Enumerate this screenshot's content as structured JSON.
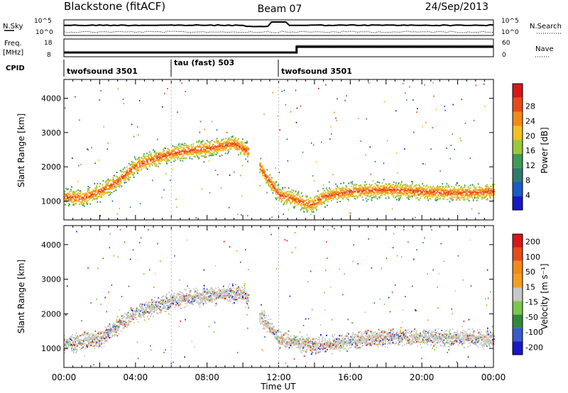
{
  "header": {
    "radar": "Blackstone (fitACF)",
    "beam": "Beam 07",
    "date": "24/Sep/2013"
  },
  "noise_panel": {
    "left_label": "N.Sky",
    "left_ticks": [
      "10^5",
      "10^0"
    ],
    "right_label": "N.Search",
    "right_ticks": [
      "10^5",
      "10^0"
    ]
  },
  "freq_panel": {
    "left_label_line1": "Freq.",
    "left_label_line2": "[MHz]",
    "left_ticks": [
      "18",
      "8"
    ],
    "right_label": "Nave",
    "right_ticks": [
      "60",
      "0"
    ]
  },
  "cpid": {
    "label": "CPID",
    "segments": [
      {
        "start_hour": 0,
        "end_hour": 6,
        "name": "twofsound 3501"
      },
      {
        "start_hour": 6,
        "end_hour": 12,
        "name": "tau (fast) 503"
      },
      {
        "start_hour": 12,
        "end_hour": 24,
        "name": "twofsound 3501"
      }
    ]
  },
  "x_axis": {
    "label": "Time UT",
    "ticks": [
      "00:00",
      "04:00",
      "08:00",
      "12:00",
      "16:00",
      "20:00",
      "00:00"
    ]
  },
  "chart_data": [
    {
      "type": "heatmap",
      "ylabel": "Slant Range [km]",
      "yticks": [
        "1000",
        "2000",
        "3000",
        "4000"
      ],
      "ylim": [
        450,
        4550
      ],
      "xlim_hours": [
        0,
        24
      ],
      "colorbar_label": "Power [dB]",
      "colorbar_ticks": [
        "4",
        "8",
        "12",
        "16",
        "20",
        "24",
        "28"
      ],
      "colorbar_range": [
        0,
        31
      ],
      "colors": [
        "#1818c8",
        "#1a5cc8",
        "#2f7a6e",
        "#3e9a55",
        "#9ac83a",
        "#f2c020",
        "#f28a18",
        "#e84a18",
        "#d81818"
      ],
      "scatter_band": [
        {
          "hour": 0,
          "range": 1150
        },
        {
          "hour": 1,
          "range": 1100
        },
        {
          "hour": 2,
          "range": 1300
        },
        {
          "hour": 3,
          "range": 1600
        },
        {
          "hour": 4,
          "range": 2050
        },
        {
          "hour": 5,
          "range": 2250
        },
        {
          "hour": 6,
          "range": 2400
        },
        {
          "hour": 7,
          "range": 2500
        },
        {
          "hour": 8,
          "range": 2550
        },
        {
          "hour": 9,
          "range": 2650
        },
        {
          "hour": 9.5,
          "range": 2700
        },
        {
          "hour": 10.5,
          "range": 2400
        },
        {
          "hour": 11.2,
          "range": 1800
        },
        {
          "hour": 12,
          "range": 1200
        },
        {
          "hour": 13,
          "range": 1050
        },
        {
          "hour": 13.8,
          "range": 900
        },
        {
          "hour": 14.5,
          "range": 1150
        },
        {
          "hour": 16,
          "range": 1300
        },
        {
          "hour": 18,
          "range": 1350
        },
        {
          "hour": 20,
          "range": 1300
        },
        {
          "hour": 22,
          "range": 1250
        },
        {
          "hour": 24,
          "range": 1300
        }
      ]
    },
    {
      "type": "heatmap",
      "ylabel": "Slant Range [km]",
      "yticks": [
        "1000",
        "2000",
        "3000",
        "4000"
      ],
      "ylim": [
        450,
        4550
      ],
      "xlim_hours": [
        0,
        24
      ],
      "colorbar_label": "Velocity [m s⁻¹]",
      "colorbar_ticks": [
        "200",
        "100",
        "50",
        "15",
        "-15",
        "-50",
        "-100",
        "-200"
      ],
      "colorbar_range": [
        -250,
        250
      ],
      "colors": [
        "#1818c8",
        "#3a5ac8",
        "#2e8a3a",
        "#7ac84a",
        "#c8c8c8",
        "#f2a020",
        "#f28a18",
        "#e84a18",
        "#d81818"
      ],
      "scatter_band": [
        {
          "hour": 0,
          "range": 1150
        },
        {
          "hour": 2,
          "range": 1300
        },
        {
          "hour": 4,
          "range": 2050
        },
        {
          "hour": 6,
          "range": 2400
        },
        {
          "hour": 8,
          "range": 2550
        },
        {
          "hour": 10,
          "range": 2600
        },
        {
          "hour": 11.2,
          "range": 1800
        },
        {
          "hour": 12,
          "range": 1300
        },
        {
          "hour": 14,
          "range": 1100
        },
        {
          "hour": 18,
          "range": 1350
        },
        {
          "hour": 24,
          "range": 1300
        }
      ]
    }
  ]
}
